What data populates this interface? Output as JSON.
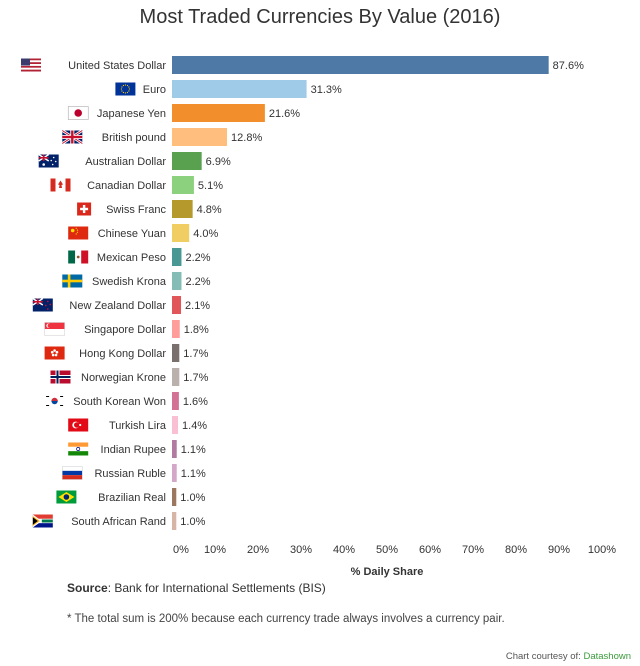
{
  "title": "Most Traded Currencies By Value (2016)",
  "source_label": "Source",
  "source_text": ": Bank for International Settlements (BIS)",
  "footnote": "* The total sum is 200% because each currency trade always involves a currency pair.",
  "credit_prefix": "Chart courtesy of: ",
  "credit_brand": "Datashown",
  "chart_data": {
    "type": "bar",
    "orientation": "horizontal",
    "title": "Most Traded Currencies By Value (2016)",
    "xlabel": "% Daily Share",
    "ylabel": "",
    "xlim": [
      0,
      100
    ],
    "xticks": [
      "0%",
      "10%",
      "20%",
      "30%",
      "40%",
      "50%",
      "60%",
      "70%",
      "80%",
      "90%",
      "100%"
    ],
    "grid": false,
    "categories": [
      "United States Dollar",
      "Euro",
      "Japanese Yen",
      "British pound",
      "Australian Dollar",
      "Canadian Dollar",
      "Swiss Franc",
      "Chinese Yuan",
      "Mexican Peso",
      "Swedish Krona",
      "New Zealand Dollar",
      "Singapore Dollar",
      "Hong Kong Dollar",
      "Norwegian Krone",
      "South Korean Won",
      "Turkish Lira",
      "Indian Rupee",
      "Russian Ruble",
      "Brazilian Real",
      "South African Rand"
    ],
    "values": [
      87.6,
      31.3,
      21.6,
      12.8,
      6.9,
      5.1,
      4.8,
      4.0,
      2.2,
      2.2,
      2.1,
      1.8,
      1.7,
      1.7,
      1.6,
      1.4,
      1.1,
      1.1,
      1.0,
      1.0
    ],
    "value_labels": [
      "87.6%",
      "31.3%",
      "21.6%",
      "12.8%",
      "6.9%",
      "5.1%",
      "4.8%",
      "4.0%",
      "2.2%",
      "2.2%",
      "2.1%",
      "1.8%",
      "1.7%",
      "1.7%",
      "1.6%",
      "1.4%",
      "1.1%",
      "1.1%",
      "1.0%",
      "1.0%"
    ],
    "colors": [
      "#4e79a7",
      "#a0cbe8",
      "#f28e2b",
      "#ffbe7d",
      "#59a14f",
      "#8cd17d",
      "#b6992d",
      "#f1ce63",
      "#499894",
      "#86bcb6",
      "#e15759",
      "#ff9d9a",
      "#79706e",
      "#bab0ac",
      "#d37295",
      "#fabfd2",
      "#b07aa1",
      "#d4a6c8",
      "#9d7660",
      "#d7b5a6"
    ],
    "flags": [
      "us",
      "eu",
      "jp",
      "gb",
      "au",
      "ca",
      "ch",
      "cn",
      "mx",
      "se",
      "nz",
      "sg",
      "hk",
      "no",
      "kr",
      "tr",
      "in",
      "ru",
      "br",
      "za"
    ]
  }
}
